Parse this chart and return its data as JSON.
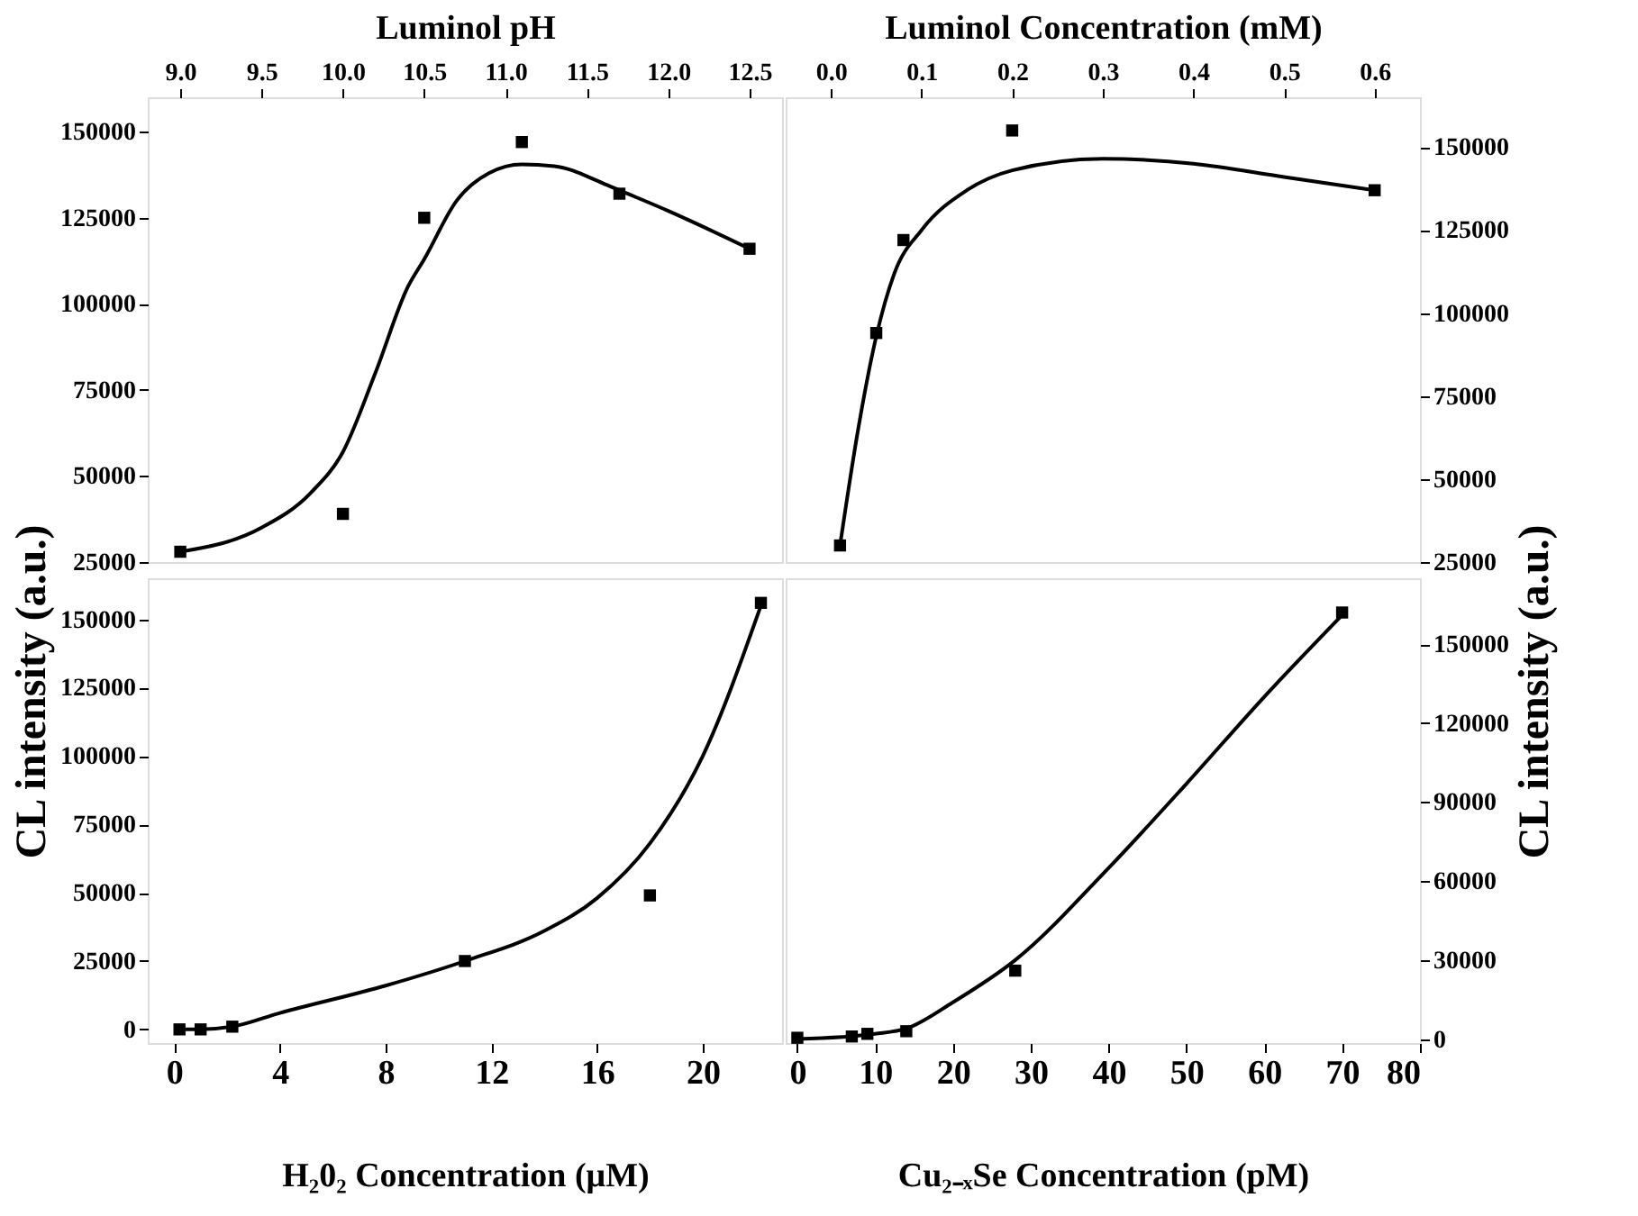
{
  "chart_data": [
    {
      "type": "scatter",
      "xlabel": "Luminol pH",
      "ylabel": "CL intensity (a.u.)",
      "xlim": [
        8.8,
        12.7
      ],
      "ylim": [
        25000,
        160000
      ],
      "xticks": [
        {
          "value": 9,
          "label": "9.0"
        },
        9.5,
        {
          "value": 10,
          "label": "10.0"
        },
        10.5,
        {
          "value": 11,
          "label": "11.0"
        },
        11.5,
        {
          "value": 12,
          "label": "12.0"
        },
        12.5
      ],
      "yticks": [
        25000,
        50000,
        75000,
        100000,
        125000,
        150000
      ],
      "series": [
        {
          "type": "scatter",
          "marker": "square",
          "color": "#000000",
          "x": [
            9.0,
            10.0,
            10.5,
            11.1,
            11.7,
            12.5
          ],
          "values": [
            28000,
            39000,
            125000,
            147000,
            132000,
            116000
          ]
        },
        {
          "type": "line",
          "color": "#000000",
          "x": [
            9.0,
            9.5,
            9.8,
            10.0,
            10.2,
            10.4,
            10.5,
            10.7,
            10.9,
            11.1,
            11.3,
            11.6,
            11.7,
            12.0,
            12.5
          ],
          "values": [
            28000,
            35000,
            45000,
            57000,
            80000,
            105000,
            113000,
            130000,
            138000,
            140500,
            140000,
            135000,
            133000,
            127000,
            116000
          ]
        }
      ]
    },
    {
      "type": "scatter",
      "xlabel": "Luminol Concentration (mM)",
      "ylabel": "CL intensity (a.u.)",
      "xlim": [
        -0.05,
        0.65
      ],
      "ylim": [
        25000,
        165000
      ],
      "xticks": [
        {
          "value": 0,
          "label": "0.0"
        },
        0.1,
        0.2,
        0.3,
        0.4,
        0.5,
        0.6
      ],
      "yticks": [
        25000,
        50000,
        75000,
        100000,
        125000,
        150000
      ],
      "series": [
        {
          "type": "scatter",
          "marker": "square",
          "color": "#000000",
          "x": [
            0.01,
            0.05,
            0.08,
            0.2,
            0.6
          ],
          "values": [
            30000,
            94000,
            122000,
            155000,
            137000
          ]
        },
        {
          "type": "line",
          "color": "#000000",
          "x": [
            0.01,
            0.03,
            0.05,
            0.07,
            0.1,
            0.15,
            0.2,
            0.3,
            0.4,
            0.5,
            0.6
          ],
          "values": [
            30000,
            65000,
            93000,
            112000,
            125000,
            137000,
            143000,
            146500,
            145000,
            141000,
            137000
          ]
        }
      ]
    },
    {
      "type": "scatter",
      "xlabel": "H₂0₂ Concentration (μM)",
      "xlim": [
        -1,
        23
      ],
      "ylim": [
        -5000,
        165000
      ],
      "xticks": [
        0,
        4,
        8,
        12,
        16,
        20
      ],
      "yticks": [
        0,
        25000,
        50000,
        75000,
        100000,
        125000,
        150000
      ],
      "series": [
        {
          "type": "scatter",
          "marker": "square",
          "color": "#000000",
          "x": [
            0.2,
            1,
            2.2,
            11,
            18,
            22.2
          ],
          "values": [
            0,
            0,
            1000,
            25000,
            49000,
            156000
          ]
        },
        {
          "type": "line",
          "color": "#000000",
          "x": [
            0.2,
            1,
            2.2,
            4,
            8,
            11,
            14,
            16,
            18,
            20,
            22.2
          ],
          "values": [
            0,
            0,
            1000,
            6000,
            16000,
            25000,
            36000,
            48000,
            68000,
            100000,
            155000
          ]
        }
      ]
    },
    {
      "type": "scatter",
      "xlabel": "Cu₂₋ₓSe Concentration (pM)",
      "xlim": [
        -1.5,
        80
      ],
      "ylim": [
        -1500,
        175000
      ],
      "xticks": [
        0,
        10,
        20,
        30,
        40,
        50,
        60,
        70,
        80
      ],
      "yticks": [
        0,
        30000,
        60000,
        90000,
        120000,
        150000
      ],
      "series": [
        {
          "type": "scatter",
          "marker": "square",
          "color": "#000000",
          "x": [
            0,
            7,
            9,
            14,
            28,
            70
          ],
          "values": [
            500,
            1000,
            2000,
            3000,
            26000,
            162000
          ]
        },
        {
          "type": "line",
          "color": "#000000",
          "x": [
            0,
            10,
            14,
            20,
            28,
            40,
            50,
            60,
            70
          ],
          "values": [
            0,
            2000,
            4000,
            14000,
            30000,
            65000,
            97000,
            130000,
            161000
          ]
        }
      ]
    }
  ]
}
